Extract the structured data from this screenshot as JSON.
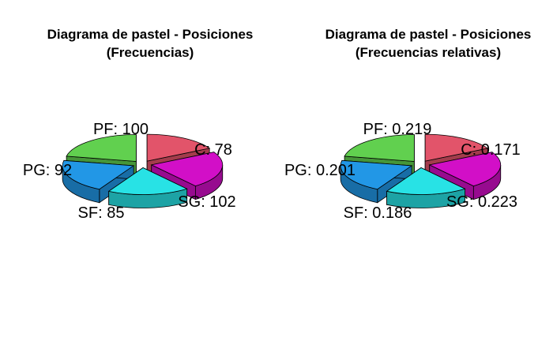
{
  "chart_data": [
    {
      "type": "pie",
      "style": "3d-exploded",
      "title": "Diagrama de pastel - Posiciones",
      "subtitle": "(Frecuencias)",
      "categories": [
        "C",
        "SG",
        "SF",
        "PG",
        "PF"
      ],
      "values": [
        78,
        102,
        85,
        92,
        100
      ],
      "labels": [
        "C: 78",
        "SG: 102",
        "SF: 85",
        "PG: 92",
        "PF: 100"
      ],
      "colors": [
        "#E2546A",
        "#D20FC7",
        "#28E2E5",
        "#2297E6",
        "#61D04F"
      ]
    },
    {
      "type": "pie",
      "style": "3d-exploded",
      "title": "Diagrama de pastel - Posiciones",
      "subtitle": "(Frecuencias relativas)",
      "categories": [
        "C",
        "SG",
        "SF",
        "PG",
        "PF"
      ],
      "values": [
        0.171,
        0.223,
        0.186,
        0.201,
        0.219
      ],
      "labels": [
        "C: 0.171",
        "SG: 0.223",
        "SF: 0.186",
        "PG: 0.201",
        "PF: 0.219"
      ],
      "colors": [
        "#E2546A",
        "#D20FC7",
        "#28E2E5",
        "#2297E6",
        "#61D04F"
      ]
    }
  ]
}
